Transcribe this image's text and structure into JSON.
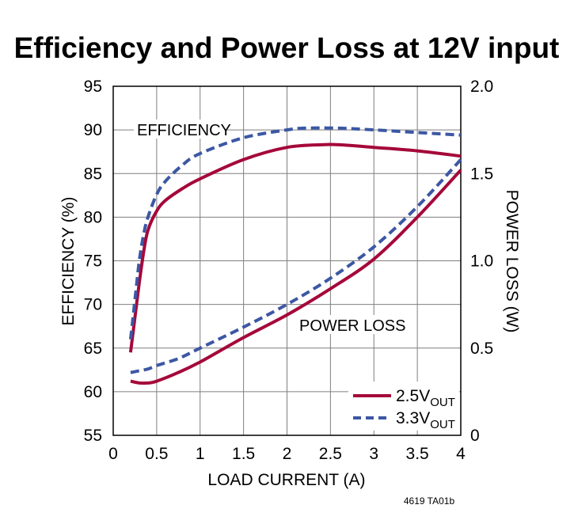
{
  "chart_data": {
    "type": "line",
    "title": "Efficiency and Power Loss at 12V input",
    "xlabel": "LOAD CURRENT (A)",
    "ylabel_left": "EFFICIENCY (%)",
    "ylabel_right": "POWER LOSS (W)",
    "xlim": [
      0,
      4
    ],
    "ylim_left": [
      55,
      95
    ],
    "ylim_right": [
      0,
      2.0
    ],
    "xticks": [
      "0",
      "0.5",
      "1",
      "1.5",
      "2",
      "2.5",
      "3",
      "3.5",
      "4"
    ],
    "yticks_left": [
      "55",
      "60",
      "65",
      "70",
      "75",
      "80",
      "85",
      "90",
      "95"
    ],
    "yticks_right": [
      "0",
      "0.5",
      "1.0",
      "1.5",
      "2.0"
    ],
    "grid": true,
    "annotations": {
      "efficiency": "EFFICIENCY",
      "power_loss": "POWER LOSS"
    },
    "legend": {
      "placement": "bottom-right",
      "entries": [
        {
          "label": "2.5V",
          "subscript": "OUT",
          "color": "#a5083a",
          "style": "solid"
        },
        {
          "label": "3.3V",
          "subscript": "OUT",
          "color": "#3c57a4",
          "style": "dashed"
        }
      ]
    },
    "series": [
      {
        "name": "Efficiency 2.5VOUT",
        "axis": "left",
        "color": "#a5083a",
        "style": "solid",
        "x": [
          0.2,
          0.25,
          0.3,
          0.35,
          0.4,
          0.5,
          0.6,
          0.8,
          1.0,
          1.5,
          2.0,
          2.4,
          2.6,
          3.0,
          3.5,
          4.0
        ],
        "y": [
          64.5,
          68.5,
          72.5,
          76.0,
          78.5,
          80.7,
          81.9,
          83.3,
          84.4,
          86.6,
          88.0,
          88.3,
          88.3,
          88.0,
          87.6,
          87.0
        ]
      },
      {
        "name": "Efficiency 3.3VOUT",
        "axis": "left",
        "color": "#3c57a4",
        "style": "dashed",
        "x": [
          0.2,
          0.25,
          0.3,
          0.35,
          0.4,
          0.5,
          0.6,
          0.8,
          1.0,
          1.5,
          2.0,
          2.2,
          2.6,
          3.0,
          3.5,
          4.0
        ],
        "y": [
          66.0,
          70.5,
          75.0,
          78.0,
          80.0,
          82.6,
          84.1,
          86.0,
          87.3,
          89.1,
          90.0,
          90.2,
          90.2,
          90.0,
          89.7,
          89.4
        ]
      },
      {
        "name": "Power loss 2.5VOUT",
        "axis": "right",
        "color": "#a5083a",
        "style": "solid",
        "x": [
          0.2,
          0.3,
          0.4,
          0.5,
          0.75,
          1.0,
          1.5,
          2.0,
          2.5,
          3.0,
          3.5,
          4.0
        ],
        "y": [
          0.31,
          0.3,
          0.3,
          0.31,
          0.36,
          0.42,
          0.56,
          0.69,
          0.84,
          1.01,
          1.25,
          1.52
        ]
      },
      {
        "name": "Power loss 3.3VOUT",
        "axis": "right",
        "color": "#3c57a4",
        "style": "dashed",
        "x": [
          0.2,
          0.3,
          0.4,
          0.5,
          0.75,
          1.0,
          1.5,
          2.0,
          2.5,
          3.0,
          3.5,
          4.0
        ],
        "y": [
          0.36,
          0.37,
          0.38,
          0.4,
          0.44,
          0.5,
          0.62,
          0.75,
          0.9,
          1.08,
          1.31,
          1.58
        ]
      }
    ],
    "figure_code": "4619 TA01b"
  }
}
